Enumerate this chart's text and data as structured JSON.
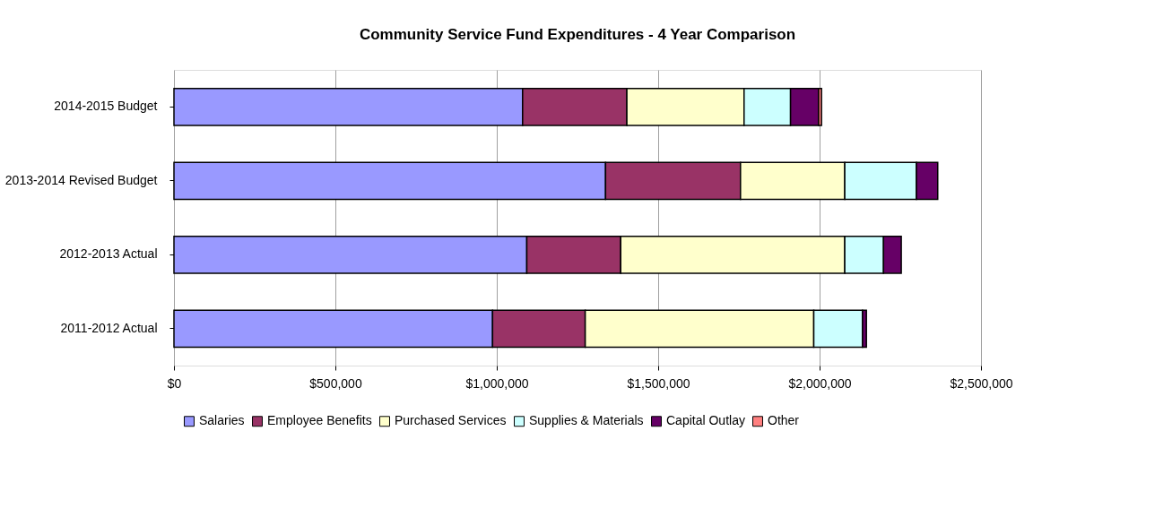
{
  "chart_data": {
    "type": "bar",
    "orientation": "horizontal",
    "stacked": true,
    "title": "Community Service Fund Expenditures - 4 Year Comparison",
    "categories": [
      "2014-2015 Budget",
      "2013-2014 Revised Budget",
      "2012-2013 Actual",
      "2011-2012 Actual"
    ],
    "series": [
      {
        "name": "Salaries",
        "color": "#9999ff",
        "values": [
          1080000,
          1337000,
          1093000,
          987000
        ]
      },
      {
        "name": "Employee Benefits",
        "color": "#993366",
        "values": [
          323000,
          418000,
          291000,
          287000
        ]
      },
      {
        "name": "Purchased Services",
        "color": "#ffffcc",
        "values": [
          363000,
          323000,
          694000,
          708000
        ]
      },
      {
        "name": "Supplies & Materials",
        "color": "#ccffff",
        "values": [
          144000,
          222000,
          120000,
          151000
        ]
      },
      {
        "name": "Capital Outlay",
        "color": "#660066",
        "values": [
          87000,
          66000,
          55000,
          12000
        ]
      },
      {
        "name": "Other",
        "color": "#ff8080",
        "values": [
          9000,
          null,
          null,
          null
        ]
      }
    ],
    "xlim": [
      0,
      2500000
    ],
    "xticks": [
      {
        "value": 0,
        "label": "$0"
      },
      {
        "value": 500000,
        "label": "$500,000"
      },
      {
        "value": 1000000,
        "label": "$1,000,000"
      },
      {
        "value": 1500000,
        "label": "$1,500,000"
      },
      {
        "value": 2000000,
        "label": "$2,000,000"
      },
      {
        "value": 2500000,
        "label": "$2,500,000"
      }
    ],
    "grid": "x",
    "legend": "bottom"
  }
}
